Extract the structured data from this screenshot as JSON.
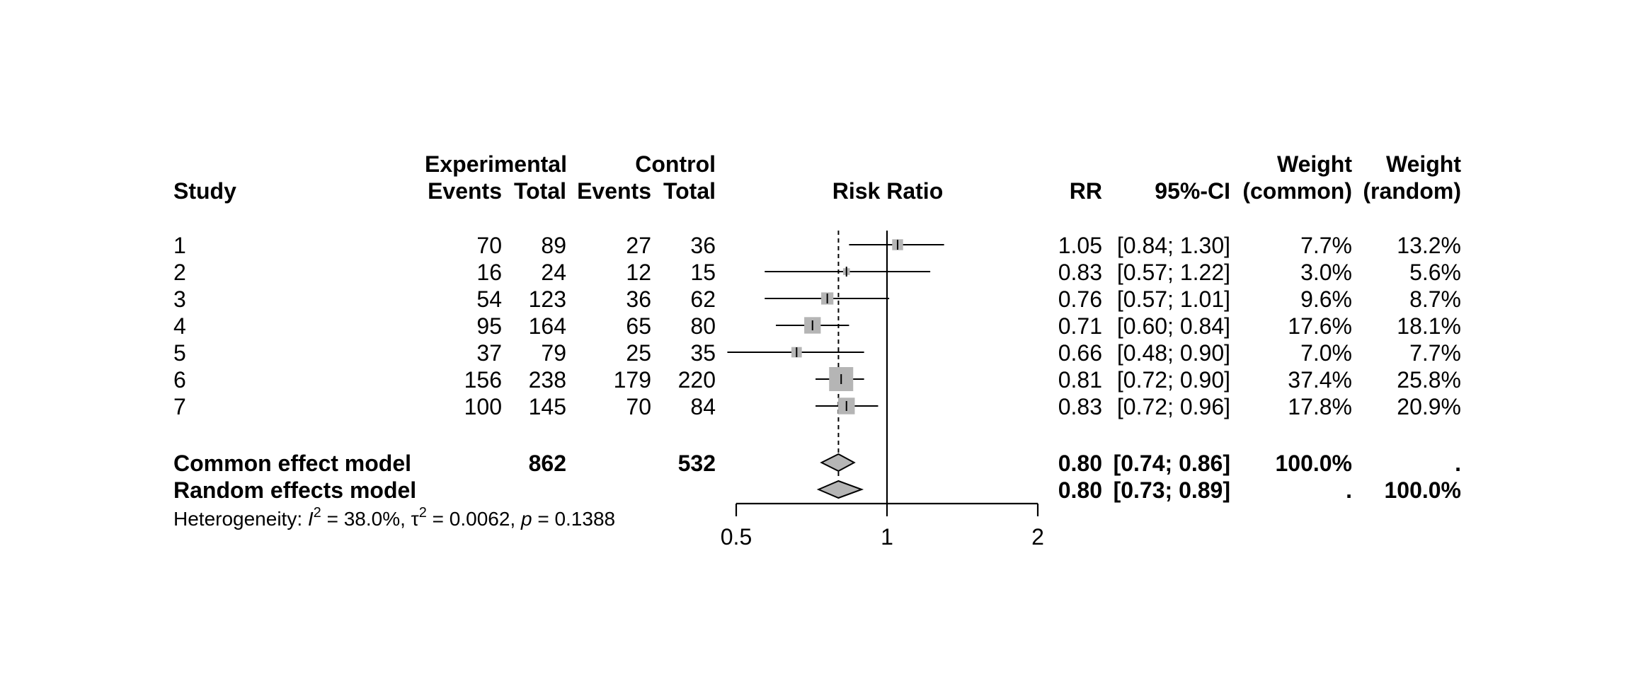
{
  "chart_data": {
    "type": "forest",
    "headers": {
      "study": "Study",
      "experimental": "Experimental",
      "control": "Control",
      "events": "Events",
      "total": "Total",
      "effect_label": "Risk Ratio",
      "rr": "RR",
      "ci": "95%-CI",
      "weight": "Weight",
      "common": "(common)",
      "random": "(random)"
    },
    "studies": [
      {
        "study": "1",
        "exp_events": "70",
        "exp_total": "89",
        "ctrl_events": "27",
        "ctrl_total": "36",
        "rr_text": "1.05",
        "ci_text": "[0.84; 1.30]",
        "w_common": "7.7%",
        "w_random": "13.2%",
        "rr": 1.05,
        "lower": 0.84,
        "upper": 1.3,
        "weight": 7.7
      },
      {
        "study": "2",
        "exp_events": "16",
        "exp_total": "24",
        "ctrl_events": "12",
        "ctrl_total": "15",
        "rr_text": "0.83",
        "ci_text": "[0.57; 1.22]",
        "w_common": "3.0%",
        "w_random": "5.6%",
        "rr": 0.83,
        "lower": 0.57,
        "upper": 1.22,
        "weight": 3.0
      },
      {
        "study": "3",
        "exp_events": "54",
        "exp_total": "123",
        "ctrl_events": "36",
        "ctrl_total": "62",
        "rr_text": "0.76",
        "ci_text": "[0.57; 1.01]",
        "w_common": "9.6%",
        "w_random": "8.7%",
        "rr": 0.76,
        "lower": 0.57,
        "upper": 1.01,
        "weight": 9.6
      },
      {
        "study": "4",
        "exp_events": "95",
        "exp_total": "164",
        "ctrl_events": "65",
        "ctrl_total": "80",
        "rr_text": "0.71",
        "ci_text": "[0.60; 0.84]",
        "w_common": "17.6%",
        "w_random": "18.1%",
        "rr": 0.71,
        "lower": 0.6,
        "upper": 0.84,
        "weight": 17.6
      },
      {
        "study": "5",
        "exp_events": "37",
        "exp_total": "79",
        "ctrl_events": "25",
        "ctrl_total": "35",
        "rr_text": "0.66",
        "ci_text": "[0.48; 0.90]",
        "w_common": "7.0%",
        "w_random": "7.7%",
        "rr": 0.66,
        "lower": 0.48,
        "upper": 0.9,
        "weight": 7.0
      },
      {
        "study": "6",
        "exp_events": "156",
        "exp_total": "238",
        "ctrl_events": "179",
        "ctrl_total": "220",
        "rr_text": "0.81",
        "ci_text": "[0.72; 0.90]",
        "w_common": "37.4%",
        "w_random": "25.8%",
        "rr": 0.81,
        "lower": 0.72,
        "upper": 0.9,
        "weight": 37.4
      },
      {
        "study": "7",
        "exp_events": "100",
        "exp_total": "145",
        "ctrl_events": "70",
        "ctrl_total": "84",
        "rr_text": "0.83",
        "ci_text": "[0.72; 0.96]",
        "w_common": "17.8%",
        "w_random": "20.9%",
        "rr": 0.83,
        "lower": 0.72,
        "upper": 0.96,
        "weight": 17.8
      }
    ],
    "common": {
      "label": "Common effect model",
      "exp_total": "862",
      "ctrl_total": "532",
      "rr_text": "0.80",
      "ci_text": "[0.74; 0.86]",
      "w_common": "100.0%",
      "w_random": ".",
      "rr": 0.8,
      "lower": 0.74,
      "upper": 0.86
    },
    "random": {
      "label": "Random effects model",
      "rr_text": "0.80",
      "ci_text": "[0.73; 0.89]",
      "w_common": ".",
      "w_random": "100.0%",
      "rr": 0.8,
      "lower": 0.73,
      "upper": 0.89
    },
    "heterogeneity": {
      "prefix": "Heterogeneity: ",
      "i2_symbol": "I",
      "sup": "2",
      "i2_value": " = 38.0%, ",
      "tau_symbol": "τ",
      "tau_value": " = 0.0062, ",
      "p_symbol": "p",
      "p_value": " = 0.1388"
    },
    "x_axis": {
      "scale": "log",
      "ticks": [
        0.5,
        1,
        2
      ],
      "tick_labels": [
        "0.5",
        "1",
        "2"
      ],
      "min": 0.5,
      "max": 2,
      "null_value": 1
    },
    "reference_lines": {
      "null": 1,
      "summary_dashed": 0.8
    }
  }
}
